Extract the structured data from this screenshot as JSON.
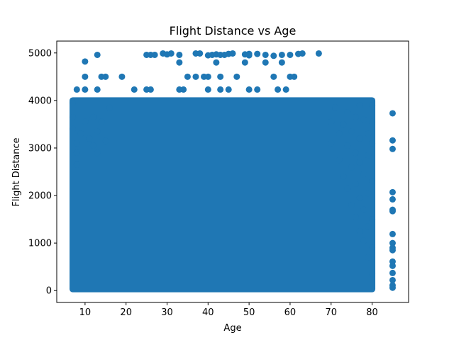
{
  "chart_data": {
    "type": "scatter",
    "title": "Flight Distance vs Age",
    "xlabel": "Age",
    "ylabel": "Flight Distance",
    "xlim": [
      3.1,
      88.9
    ],
    "ylim": [
      -250,
      5250
    ],
    "x_ticks": [
      10,
      20,
      30,
      40,
      50,
      60,
      70,
      80
    ],
    "y_ticks": [
      0,
      1000,
      2000,
      3000,
      4000,
      5000
    ],
    "grid": false,
    "legend": "none",
    "marker_color": "#1f77b4",
    "dense_region": {
      "x_range": [
        7,
        80
      ],
      "y_range": [
        31,
        4000
      ]
    },
    "points": [
      [
        13,
        4960
      ],
      [
        25,
        4960
      ],
      [
        26,
        4960
      ],
      [
        27,
        4960
      ],
      [
        29,
        4990
      ],
      [
        30,
        4970
      ],
      [
        31,
        4990
      ],
      [
        33,
        4960
      ],
      [
        37,
        4990
      ],
      [
        38,
        4990
      ],
      [
        40,
        4950
      ],
      [
        41,
        4960
      ],
      [
        42,
        4970
      ],
      [
        43,
        4960
      ],
      [
        44,
        4960
      ],
      [
        45,
        4980
      ],
      [
        46,
        4990
      ],
      [
        49,
        4970
      ],
      [
        50,
        4980
      ],
      [
        50,
        4950
      ],
      [
        52,
        4980
      ],
      [
        54,
        4960
      ],
      [
        56,
        4940
      ],
      [
        58,
        4960
      ],
      [
        60,
        4960
      ],
      [
        62,
        4980
      ],
      [
        63,
        4990
      ],
      [
        67,
        4990
      ],
      [
        10,
        4820
      ],
      [
        33,
        4800
      ],
      [
        42,
        4800
      ],
      [
        49,
        4800
      ],
      [
        54,
        4800
      ],
      [
        58,
        4800
      ],
      [
        10,
        4500
      ],
      [
        14,
        4500
      ],
      [
        15,
        4500
      ],
      [
        19,
        4500
      ],
      [
        35,
        4500
      ],
      [
        37,
        4500
      ],
      [
        39,
        4500
      ],
      [
        40,
        4500
      ],
      [
        43,
        4500
      ],
      [
        47,
        4500
      ],
      [
        56,
        4500
      ],
      [
        60,
        4500
      ],
      [
        61,
        4500
      ],
      [
        8,
        4230
      ],
      [
        10,
        4230
      ],
      [
        13,
        4230
      ],
      [
        22,
        4230
      ],
      [
        25,
        4230
      ],
      [
        26,
        4230
      ],
      [
        33,
        4230
      ],
      [
        34,
        4230
      ],
      [
        40,
        4230
      ],
      [
        43,
        4230
      ],
      [
        45,
        4230
      ],
      [
        50,
        4230
      ],
      [
        52,
        4230
      ],
      [
        57,
        4230
      ],
      [
        59,
        4230
      ],
      [
        7,
        3950
      ],
      [
        7,
        3650
      ],
      [
        7,
        3400
      ],
      [
        8,
        3100
      ],
      [
        8,
        2900
      ],
      [
        8,
        2650
      ],
      [
        9,
        3300
      ],
      [
        10,
        3550
      ],
      [
        11,
        3200
      ],
      [
        12,
        3650
      ],
      [
        12,
        3050
      ],
      [
        13,
        3350
      ],
      [
        13,
        2900
      ],
      [
        14,
        3550
      ],
      [
        15,
        3150
      ],
      [
        16,
        3850
      ],
      [
        70,
        3550
      ],
      [
        70,
        3100
      ],
      [
        71,
        3850
      ],
      [
        72,
        3300
      ],
      [
        72,
        2750
      ],
      [
        73,
        3500
      ],
      [
        73,
        2400
      ],
      [
        74,
        3750
      ],
      [
        74,
        3050
      ],
      [
        74,
        2150
      ],
      [
        75,
        3350
      ],
      [
        75,
        2600
      ],
      [
        75,
        1800
      ],
      [
        76,
        3650
      ],
      [
        76,
        2900
      ],
      [
        76,
        2250
      ],
      [
        76,
        1550
      ],
      [
        77,
        3900
      ],
      [
        77,
        3200
      ],
      [
        77,
        2700
      ],
      [
        77,
        1950
      ],
      [
        77,
        1250
      ],
      [
        78,
        3600
      ],
      [
        78,
        2450
      ],
      [
        78,
        1700
      ],
      [
        78,
        1050
      ],
      [
        79,
        3300
      ],
      [
        79,
        2850
      ],
      [
        79,
        2050
      ],
      [
        79,
        1350
      ],
      [
        79,
        700
      ],
      [
        80,
        3900
      ],
      [
        80,
        3550
      ],
      [
        80,
        3100
      ],
      [
        80,
        2300
      ],
      [
        80,
        1500
      ],
      [
        80,
        900
      ],
      [
        80,
        350
      ],
      [
        85,
        3730
      ],
      [
        85,
        3160
      ],
      [
        85,
        2980
      ],
      [
        85,
        2070
      ],
      [
        85,
        1920
      ],
      [
        85,
        1700
      ],
      [
        85,
        1670
      ],
      [
        85,
        1190
      ],
      [
        85,
        1000
      ],
      [
        85,
        900
      ],
      [
        85,
        850
      ],
      [
        85,
        610
      ],
      [
        85,
        520
      ],
      [
        85,
        370
      ],
      [
        85,
        220
      ],
      [
        85,
        110
      ],
      [
        85,
        60
      ]
    ]
  }
}
